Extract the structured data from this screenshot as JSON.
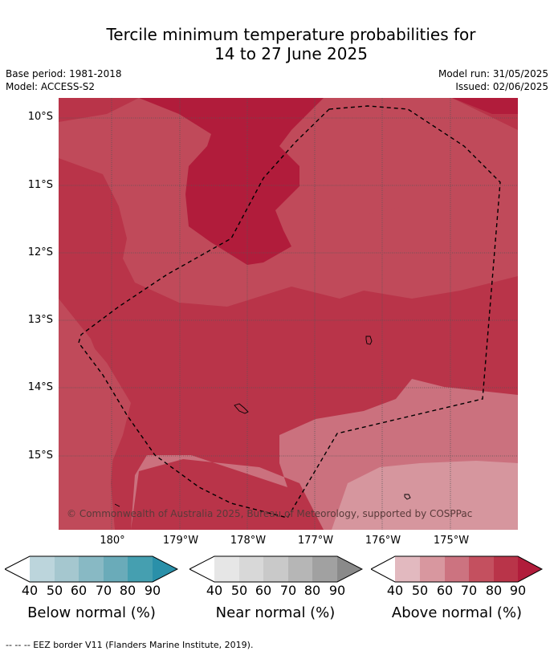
{
  "title_line1": "Tercile minimum temperature probabilities for",
  "title_line2": "14 to 27 June 2025",
  "base_period": "Base period: 1981-2018",
  "model": "Model: ACCESS-S2",
  "model_run": "Model run: 31/05/2025",
  "issued": "Issued: 02/06/2025",
  "copyright": "© Commonwealth of Australia 2025, Bureau of Meteorology, supported by COSPPac",
  "lat_labels": [
    "10°S",
    "11°S",
    "12°S",
    "13°S",
    "14°S",
    "15°S"
  ],
  "lon_labels": [
    "180°",
    "179°W",
    "178°W",
    "177°W",
    "176°W",
    "175°W"
  ],
  "legends": [
    {
      "title": "Below normal (%)",
      "ticks": [
        "40",
        "50",
        "60",
        "70",
        "80",
        "90"
      ],
      "colors": [
        "#ffffff",
        "#bcd5dc",
        "#a5c7cf",
        "#88b9c4",
        "#6aabb9",
        "#459fb0",
        "#2a90a9"
      ]
    },
    {
      "title": "Near normal (%)",
      "ticks": [
        "40",
        "50",
        "60",
        "70",
        "80",
        "90"
      ],
      "colors": [
        "#ffffff",
        "#e6e6e6",
        "#d8d8d8",
        "#c9c9c9",
        "#b6b6b6",
        "#a1a1a1",
        "#8a8a8a"
      ]
    },
    {
      "title": "Above normal (%)",
      "ticks": [
        "40",
        "50",
        "60",
        "70",
        "80",
        "90"
      ],
      "colors": [
        "#ffffff",
        "#e2b9bf",
        "#d8979f",
        "#cc7380",
        "#c4505f",
        "#b93449",
        "#b11c3b"
      ]
    }
  ],
  "map_colors": {
    "p60": "#cb717e",
    "p50": "#d6969e",
    "p70": "#c04a5a",
    "p80": "#b93449",
    "p90": "#b11c3b"
  },
  "footnote": "--  --  -- EEZ border V11 (Flanders Marine Institute, 2019)."
}
